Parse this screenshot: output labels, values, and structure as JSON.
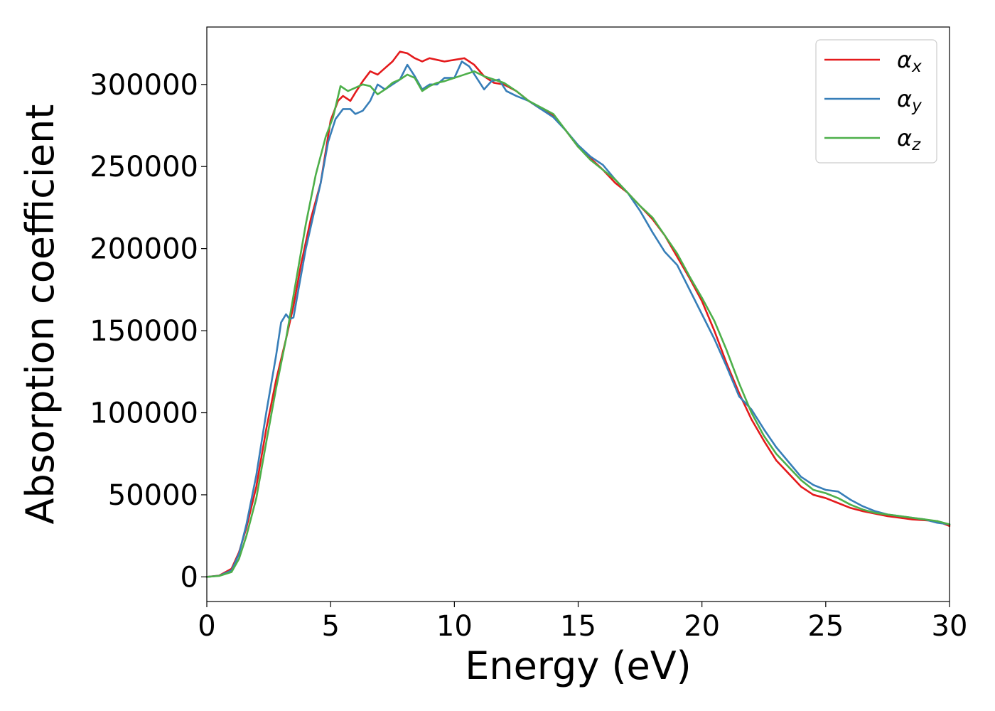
{
  "chart_data": {
    "type": "line",
    "title": "",
    "xlabel": "Energy (eV)",
    "ylabel": "Absorption coefficient",
    "xlim": [
      0,
      30
    ],
    "ylim": [
      -15000,
      335000
    ],
    "xticks": [
      0,
      5,
      10,
      15,
      20,
      25,
      30
    ],
    "xtick_labels": [
      "0",
      "5",
      "10",
      "15",
      "20",
      "25",
      "30"
    ],
    "yticks": [
      0,
      50000,
      100000,
      150000,
      200000,
      250000,
      300000
    ],
    "ytick_labels": [
      "0",
      "50000",
      "100000",
      "150000",
      "200000",
      "250000",
      "300000"
    ],
    "grid": false,
    "legend_position": "top-right",
    "series": [
      {
        "name": "α",
        "subscript": "x",
        "color": "#e41a1c",
        "x": [
          0,
          0.5,
          1.0,
          1.3,
          1.6,
          2.0,
          2.4,
          2.8,
          3.2,
          3.5,
          3.8,
          4.2,
          4.6,
          5.0,
          5.3,
          5.5,
          5.8,
          6.0,
          6.3,
          6.6,
          6.9,
          7.2,
          7.5,
          7.8,
          8.1,
          8.4,
          8.7,
          9.0,
          9.3,
          9.6,
          10.0,
          10.4,
          10.8,
          11.2,
          11.6,
          12.0,
          12.5,
          13.0,
          13.5,
          14.0,
          14.5,
          15.0,
          15.5,
          16.0,
          16.5,
          17.0,
          17.5,
          18.0,
          18.5,
          19.0,
          19.5,
          20.0,
          20.5,
          21.0,
          21.5,
          22.0,
          22.5,
          23.0,
          23.5,
          24.0,
          24.5,
          25.0,
          25.5,
          26.0,
          26.5,
          27.0,
          27.5,
          28.0,
          28.5,
          29.0,
          29.5,
          30.0
        ],
        "y": [
          0,
          800,
          5000,
          15000,
          30000,
          55000,
          90000,
          120000,
          145000,
          165000,
          190000,
          218000,
          240000,
          278000,
          290000,
          293000,
          290000,
          295000,
          302000,
          308000,
          306000,
          310000,
          314000,
          320000,
          319000,
          316000,
          314000,
          316000,
          315000,
          314000,
          315000,
          316000,
          312000,
          305000,
          301000,
          300000,
          296000,
          290000,
          285000,
          281000,
          272000,
          262000,
          255000,
          248000,
          240000,
          234000,
          226000,
          218000,
          208000,
          195000,
          182000,
          168000,
          150000,
          130000,
          112000,
          96000,
          83000,
          71000,
          63000,
          55000,
          50000,
          48000,
          45000,
          42000,
          40000,
          38500,
          37000,
          36000,
          35000,
          34500,
          34000,
          31000
        ]
      },
      {
        "name": "α",
        "subscript": "y",
        "color": "#377eb8",
        "x": [
          0,
          0.5,
          1.0,
          1.3,
          1.6,
          2.0,
          2.4,
          2.8,
          3.0,
          3.2,
          3.35,
          3.5,
          3.7,
          4.0,
          4.3,
          4.6,
          4.9,
          5.2,
          5.5,
          5.8,
          6.0,
          6.3,
          6.6,
          6.9,
          7.2,
          7.5,
          7.8,
          8.1,
          8.4,
          8.7,
          9.0,
          9.3,
          9.6,
          10.0,
          10.3,
          10.6,
          10.9,
          11.2,
          11.5,
          11.8,
          12.1,
          12.5,
          13.0,
          13.5,
          14.0,
          14.5,
          15.0,
          15.5,
          16.0,
          16.5,
          17.0,
          17.5,
          18.0,
          18.5,
          19.0,
          19.5,
          20.0,
          20.5,
          21.0,
          21.5,
          22.0,
          22.5,
          23.0,
          23.5,
          24.0,
          24.5,
          25.0,
          25.5,
          26.0,
          26.5,
          27.0,
          27.5,
          28.0,
          28.5,
          29.0,
          29.5,
          30.0
        ],
        "y": [
          0,
          700,
          4000,
          14000,
          32000,
          62000,
          100000,
          135000,
          155000,
          160000,
          157000,
          158000,
          175000,
          200000,
          220000,
          240000,
          265000,
          279000,
          285000,
          285000,
          282000,
          284000,
          290000,
          300000,
          297000,
          300000,
          303000,
          312000,
          305000,
          297000,
          300000,
          300000,
          304000,
          304000,
          314000,
          311000,
          304000,
          297000,
          302000,
          303000,
          296000,
          293000,
          290000,
          285000,
          280000,
          272000,
          263000,
          256000,
          251000,
          242000,
          234000,
          223000,
          210000,
          198000,
          190000,
          175000,
          160000,
          145000,
          128000,
          110000,
          102000,
          90000,
          79000,
          70000,
          61000,
          56000,
          53000,
          52000,
          47000,
          43000,
          40000,
          38000,
          37000,
          36000,
          35000,
          33000,
          32000
        ]
      },
      {
        "name": "α",
        "subscript": "z",
        "color": "#4daf4a",
        "x": [
          0,
          0.5,
          1.0,
          1.3,
          1.6,
          2.0,
          2.4,
          2.8,
          3.2,
          3.6,
          4.0,
          4.4,
          4.8,
          5.1,
          5.4,
          5.7,
          6.0,
          6.3,
          6.6,
          6.9,
          7.2,
          7.5,
          7.8,
          8.1,
          8.4,
          8.7,
          9.0,
          9.3,
          9.6,
          10.0,
          10.4,
          10.8,
          11.2,
          11.6,
          12.0,
          12.5,
          13.0,
          13.5,
          14.0,
          14.5,
          15.0,
          15.5,
          16.0,
          16.5,
          17.0,
          17.5,
          18.0,
          18.5,
          19.0,
          19.5,
          20.0,
          20.5,
          21.0,
          21.5,
          22.0,
          22.5,
          23.0,
          23.5,
          24.0,
          24.5,
          25.0,
          25.5,
          26.0,
          26.5,
          27.0,
          27.5,
          28.0,
          28.5,
          29.0,
          29.5,
          30.0
        ],
        "y": [
          0,
          600,
          3000,
          11000,
          25000,
          48000,
          82000,
          115000,
          145000,
          180000,
          215000,
          245000,
          268000,
          280000,
          299000,
          296000,
          298000,
          300000,
          299000,
          294000,
          297000,
          301000,
          303000,
          306000,
          304000,
          296000,
          299000,
          301000,
          302000,
          304000,
          306000,
          308000,
          305000,
          303000,
          301000,
          296000,
          290000,
          286000,
          282000,
          272000,
          262000,
          254000,
          248000,
          242000,
          234000,
          226000,
          219000,
          208000,
          197000,
          183000,
          170000,
          156000,
          138000,
          118000,
          100000,
          86000,
          75000,
          67000,
          59000,
          53000,
          51000,
          48000,
          44000,
          41000,
          39000,
          38000,
          37000,
          36000,
          35000,
          34000,
          32000
        ]
      }
    ]
  }
}
